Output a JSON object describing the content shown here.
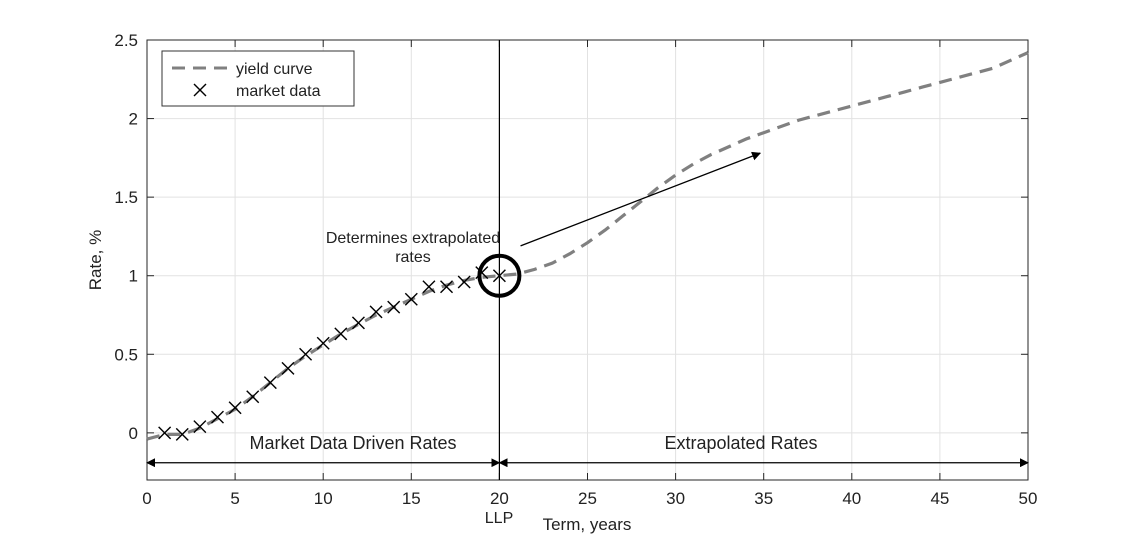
{
  "chart_data": {
    "type": "line",
    "xlabel": "Term, years",
    "ylabel": "Rate, %",
    "xlim": [
      0,
      50
    ],
    "ylim": [
      -0.3,
      2.5
    ],
    "xticks": [
      "0",
      "5",
      "10",
      "15",
      "20",
      "25",
      "30",
      "35",
      "40",
      "45",
      "50"
    ],
    "yticks": [
      "0",
      "0.5",
      "1",
      "1.5",
      "2",
      "2.5"
    ],
    "grid": true,
    "legend_position": "top-left",
    "series": [
      {
        "name": "yield curve",
        "style": "dashed",
        "color": "#808080",
        "x": [
          0,
          1,
          2,
          3,
          4,
          5,
          6,
          7,
          8,
          9,
          10,
          11,
          12,
          13,
          14,
          15,
          16,
          17,
          18,
          19,
          20,
          21,
          22,
          23,
          24,
          25,
          26,
          27,
          28,
          29,
          30,
          31,
          32,
          33,
          34,
          35,
          36,
          37,
          38,
          39,
          40,
          41,
          42,
          43,
          44,
          45,
          46,
          47,
          48,
          49,
          50
        ],
        "y": [
          -0.04,
          -0.01,
          -0.01,
          0.03,
          0.09,
          0.15,
          0.23,
          0.32,
          0.41,
          0.49,
          0.56,
          0.63,
          0.69,
          0.75,
          0.8,
          0.85,
          0.9,
          0.94,
          0.97,
          0.99,
          1.0,
          1.01,
          1.04,
          1.08,
          1.14,
          1.21,
          1.29,
          1.38,
          1.47,
          1.56,
          1.64,
          1.71,
          1.77,
          1.82,
          1.87,
          1.91,
          1.95,
          1.99,
          2.02,
          2.05,
          2.08,
          2.11,
          2.14,
          2.17,
          2.2,
          2.23,
          2.26,
          2.29,
          2.32,
          2.37,
          2.42
        ]
      },
      {
        "name": "market data",
        "style": "markers",
        "marker": "x",
        "color": "#000000",
        "x": [
          1,
          2,
          3,
          4,
          5,
          6,
          7,
          8,
          9,
          10,
          11,
          12,
          13,
          14,
          15,
          16,
          17,
          18,
          19,
          20
        ],
        "y": [
          0.0,
          -0.01,
          0.04,
          0.1,
          0.16,
          0.23,
          0.32,
          0.41,
          0.5,
          0.57,
          0.63,
          0.7,
          0.77,
          0.8,
          0.85,
          0.93,
          0.93,
          0.96,
          1.02,
          1.0
        ]
      }
    ],
    "vertical_line": {
      "x": 20,
      "label": "LLP"
    },
    "circle_marker": {
      "x": 20,
      "y": 1.0
    },
    "annotations": [
      {
        "text_lines": [
          "Determines extrapolated",
          "rates"
        ],
        "arrow_from": [
          21.2,
          1.19
        ],
        "arrow_to": [
          34.8,
          1.78
        ]
      },
      {
        "text": "Market Data Driven Rates",
        "arrow_from": [
          0,
          -0.19
        ],
        "arrow_to": [
          20,
          -0.19
        ]
      },
      {
        "text": "Extrapolated Rates",
        "arrow_from": [
          20,
          -0.19
        ],
        "arrow_to": [
          50,
          -0.19
        ]
      }
    ]
  }
}
